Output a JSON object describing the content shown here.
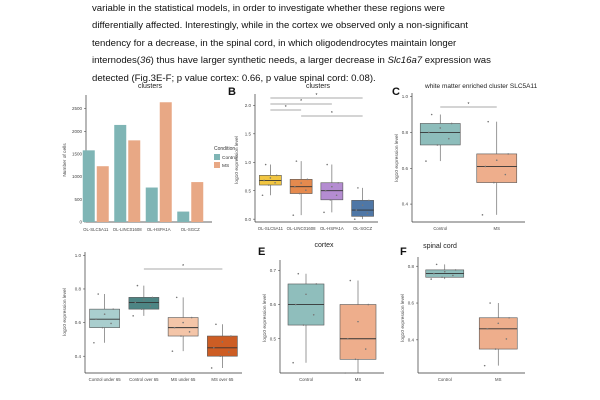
{
  "paragraph": {
    "l1": "variable in the statistical models, in order to investigate whether these regions were",
    "l2": "differentially affected. Interestingly, while in the cortex we observed only a non-significant",
    "l3": "tendency for a decrease,  in the spinal cord, in which oligodendrocytes maintain longer",
    "l4a": "internodes(",
    "l4ref": "36",
    "l4b": ") thus have larger synthetic needs, a larger decrease in ",
    "l4gene": "Slc16a7",
    "l4c": " expression was",
    "l5": "detected (Fig.3E-F; p value cortex: 0.66, p value spinal cord: 0.08)."
  },
  "chart_data": [
    {
      "panel": "A",
      "type": "bar",
      "title": "clusters",
      "ylabel": "Number of cells",
      "ylim": [
        0,
        2800
      ],
      "yticks": [
        "0",
        "500",
        "1000",
        "1500",
        "2000",
        "2500"
      ],
      "categories": [
        "OL-SLC5A11",
        "OL-LINC01608",
        "OL-HSPA1A",
        "OL-SGCZ"
      ],
      "series": [
        {
          "name": "Control",
          "color": "#7fb5b5",
          "values": [
            1580,
            2140,
            760,
            230
          ]
        },
        {
          "name": "MS",
          "color": "#e8a885",
          "values": [
            1230,
            1800,
            2640,
            880
          ]
        }
      ],
      "legend_title": "Condition",
      "legend": [
        "Control",
        "MS"
      ]
    },
    {
      "panel": "B",
      "type": "box",
      "title": "clusters",
      "ylabel": "log10 expression level",
      "yticks": [
        "0.0",
        "0.5",
        "1.0",
        "1.5",
        "2.0"
      ],
      "categories": [
        "OL-SLC5A11",
        "OL-LINC01608",
        "OL-HSPA1A",
        "OL-SGCZ"
      ],
      "stats": [
        {
          "name": "OL-SLC5A11",
          "color": "#f2c641",
          "min": 0.42,
          "q1": 0.6,
          "median": 0.68,
          "q3": 0.77,
          "max": 0.96
        },
        {
          "name": "OL-LINC01608",
          "color": "#e58a4e",
          "min": 0.07,
          "q1": 0.45,
          "median": 0.57,
          "q3": 0.7,
          "max": 1.02
        },
        {
          "name": "OL-HSPA1A",
          "color": "#b48cd1",
          "min": 0.12,
          "q1": 0.34,
          "median": 0.5,
          "q3": 0.64,
          "max": 0.96
        },
        {
          "name": "OL-SGCZ",
          "color": "#4f77a6",
          "min": 0.0,
          "q1": 0.05,
          "median": 0.16,
          "q3": 0.33,
          "max": 0.55
        }
      ],
      "significance": [
        "*",
        "*",
        "*",
        "*"
      ]
    },
    {
      "panel": "C",
      "type": "box",
      "title": "white matter enriched cluster SLC5A11",
      "ylabel": "log10 expression level",
      "yticks": [
        "0.4",
        "0.6",
        "0.8",
        "1.0"
      ],
      "categories": [
        "Control",
        "MS"
      ],
      "stats": [
        {
          "name": "Control",
          "color": "#8dbdbb",
          "min": 0.64,
          "q1": 0.73,
          "median": 0.8,
          "q3": 0.85,
          "max": 0.9
        },
        {
          "name": "MS",
          "color": "#eeae8c",
          "min": 0.34,
          "q1": 0.52,
          "median": 0.61,
          "q3": 0.68,
          "max": 0.86
        }
      ],
      "significance": [
        "*"
      ]
    },
    {
      "panel": "D",
      "type": "box",
      "title": "",
      "ylabel": "log10 expression level",
      "yticks": [
        "0.4",
        "0.6",
        "0.8",
        "1.0"
      ],
      "categories": [
        "Control under 65",
        "Control over 65",
        "MS under 65",
        "MS over 65"
      ],
      "stats": [
        {
          "name": "Control under 65",
          "color": "#a9cece",
          "min": 0.48,
          "q1": 0.57,
          "median": 0.62,
          "q3": 0.68,
          "max": 0.77
        },
        {
          "name": "Control over 65",
          "color": "#4d8584",
          "min": 0.64,
          "q1": 0.68,
          "median": 0.72,
          "q3": 0.75,
          "max": 0.82
        },
        {
          "name": "MS under 65",
          "color": "#f4c5a8",
          "min": 0.43,
          "q1": 0.52,
          "median": 0.57,
          "q3": 0.63,
          "max": 0.75
        },
        {
          "name": "MS over 65",
          "color": "#cd5d24",
          "min": 0.33,
          "q1": 0.4,
          "median": 0.45,
          "q3": 0.52,
          "max": 0.59
        }
      ],
      "significance": [
        "*"
      ]
    },
    {
      "panel": "E",
      "type": "box",
      "title": "cortex",
      "ylabel": "log10 expression level",
      "yticks": [
        "0.5",
        "0.6",
        "0.7"
      ],
      "categories": [
        "Control",
        "MS"
      ],
      "stats": [
        {
          "name": "Control",
          "color": "#8fbebc",
          "min": 0.43,
          "q1": 0.54,
          "median": 0.6,
          "q3": 0.66,
          "max": 0.69
        },
        {
          "name": "MS",
          "color": "#eeae8c",
          "min": 0.4,
          "q1": 0.44,
          "median": 0.5,
          "q3": 0.6,
          "max": 0.67
        }
      ],
      "significance": []
    },
    {
      "panel": "F",
      "type": "box",
      "title": "spinal cord",
      "ylabel": "log10 expression level",
      "yticks": [
        "0.4",
        "0.6",
        "0.8"
      ],
      "categories": [
        "Control",
        "MS"
      ],
      "stats": [
        {
          "name": "Control",
          "color": "#8fbebc",
          "min": 0.73,
          "q1": 0.74,
          "median": 0.76,
          "q3": 0.78,
          "max": 0.81
        },
        {
          "name": "MS",
          "color": "#eeae8c",
          "min": 0.26,
          "q1": 0.35,
          "median": 0.46,
          "q3": 0.52,
          "max": 0.6
        }
      ],
      "significance": []
    }
  ]
}
